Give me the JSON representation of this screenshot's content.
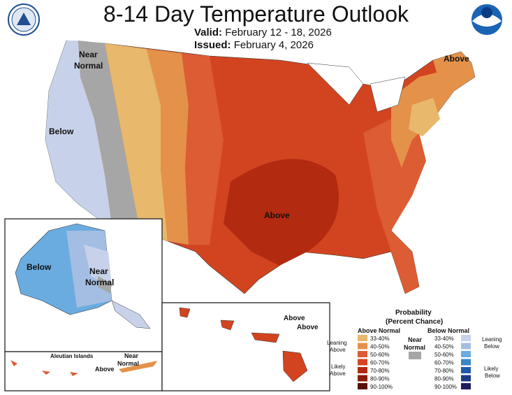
{
  "title": "8-14 Day Temperature Outlook",
  "valid_label": "Valid:",
  "valid_dates": "February 12 - 18, 2026",
  "issued_label": "Issued:",
  "issued_date": "February 4, 2026",
  "map_labels": {
    "near_normal_west_1": "Near",
    "near_normal_west_2": "Normal",
    "below_west": "Below",
    "above_central": "Above",
    "above_maine": "Above",
    "below_alaska": "Below",
    "near_normal_alaska_1": "Near",
    "near_normal_alaska_2": "Normal",
    "aleutian_islands": "Aleutian Islands",
    "near_normal_aleutian_1": "Near",
    "near_normal_aleutian_2": "Normal",
    "above_aleutian": "Above",
    "above_hawaii_1": "Above",
    "above_hawaii_2": "Above"
  },
  "legend": {
    "title_1": "Probability",
    "title_2": "(Percent Chance)",
    "above_header": "Above Normal",
    "below_header": "Below Normal",
    "near_header_1": "Near",
    "near_header_2": "Normal",
    "leaning_above_1": "Leaning",
    "leaning_above_2": "Above",
    "likely_above_1": "Likely",
    "likely_above_2": "Above",
    "leaning_below_1": "Leaning",
    "leaning_below_2": "Below",
    "likely_below_1": "Likely",
    "likely_below_2": "Below",
    "above_bins": [
      {
        "label": "33-40%",
        "color": "#e8b86c"
      },
      {
        "label": "40-50%",
        "color": "#e4914a"
      },
      {
        "label": "50-60%",
        "color": "#dc5c33"
      },
      {
        "label": "60-70%",
        "color": "#d2441f"
      },
      {
        "label": "70-80%",
        "color": "#b22a10"
      },
      {
        "label": "80-90%",
        "color": "#8c1c0a"
      },
      {
        "label": "90-100%",
        "color": "#5a1005"
      }
    ],
    "below_bins": [
      {
        "label": "33-40%",
        "color": "#c7d2ea"
      },
      {
        "label": "40-50%",
        "color": "#a4bde3"
      },
      {
        "label": "50-60%",
        "color": "#6aace0"
      },
      {
        "label": "60-70%",
        "color": "#3a86c9"
      },
      {
        "label": "70-80%",
        "color": "#1f5aa6"
      },
      {
        "label": "80-90%",
        "color": "#1c3a84"
      },
      {
        "label": "90-100%",
        "color": "#1e1a5e"
      }
    ],
    "near_color": "#a6a6a6"
  },
  "logos": {
    "left": "doc-seal",
    "right": "noaa-logo"
  }
}
